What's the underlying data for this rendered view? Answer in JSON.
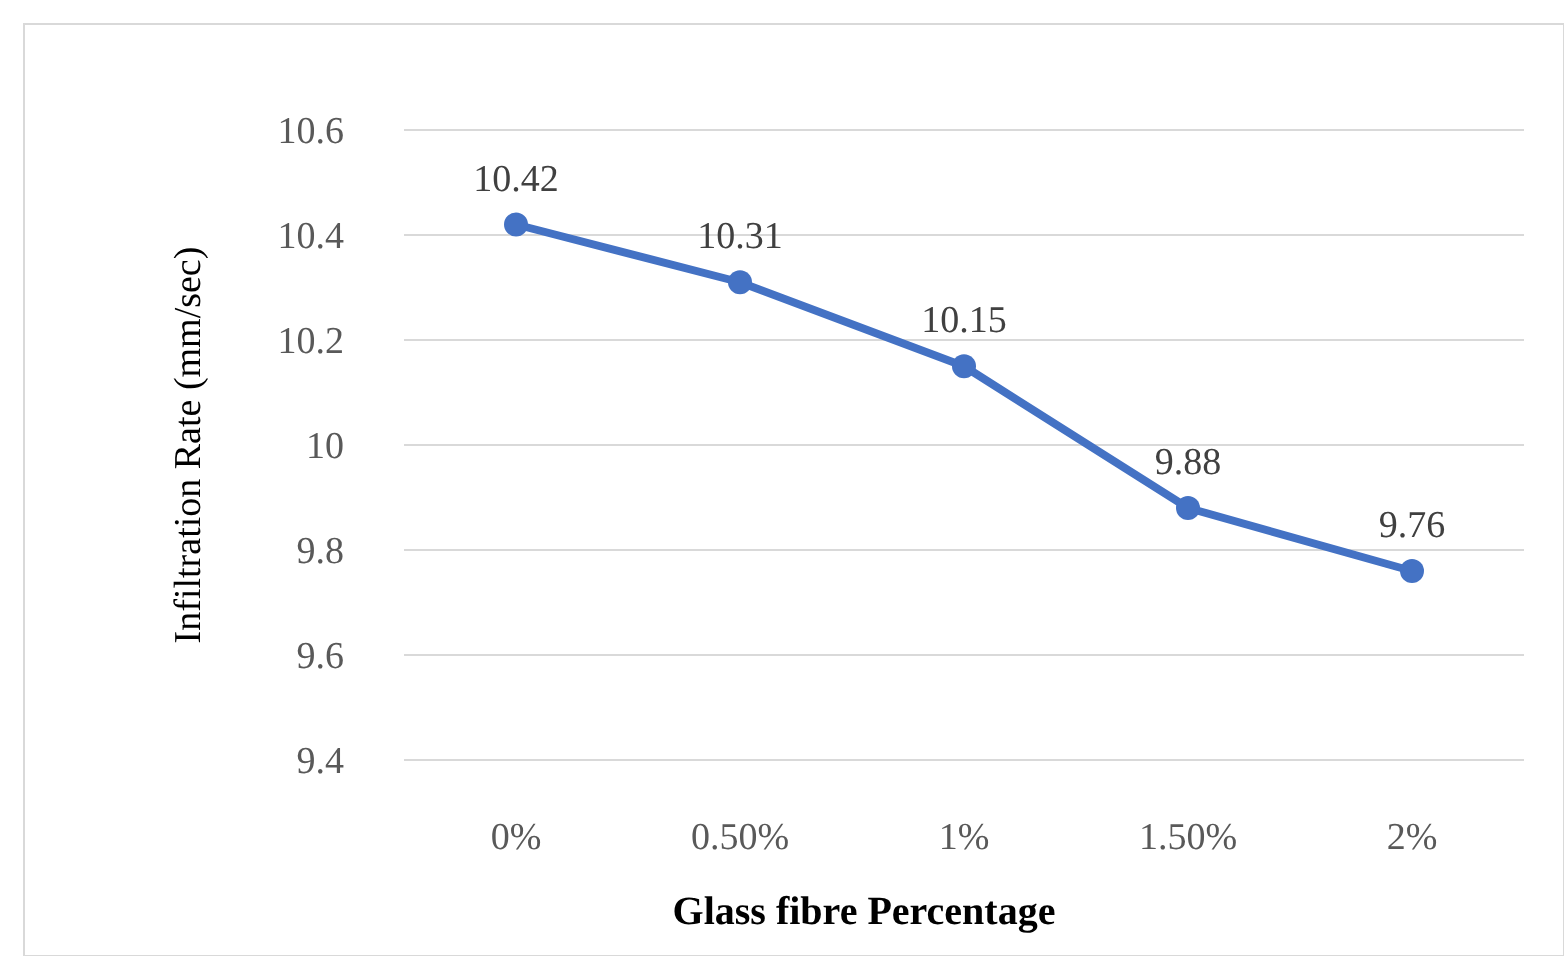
{
  "chart_data": {
    "type": "line",
    "xlabel": "Glass fibre Percentage",
    "ylabel": "Infiltration Rate (mm/sec)",
    "categories": [
      "0%",
      "0.50%",
      "1%",
      "1.50%",
      "2%"
    ],
    "series": [
      {
        "color": "#4472c4",
        "values": [
          10.42,
          10.31,
          10.15,
          9.88,
          9.76
        ]
      }
    ],
    "ylim": [
      9.4,
      10.6
    ],
    "yticks": [
      9.4,
      9.6,
      9.8,
      10,
      10.2,
      10.4,
      10.6
    ],
    "grid": "y",
    "marker": "circle",
    "line_style": "solid",
    "data_labels": true
  }
}
